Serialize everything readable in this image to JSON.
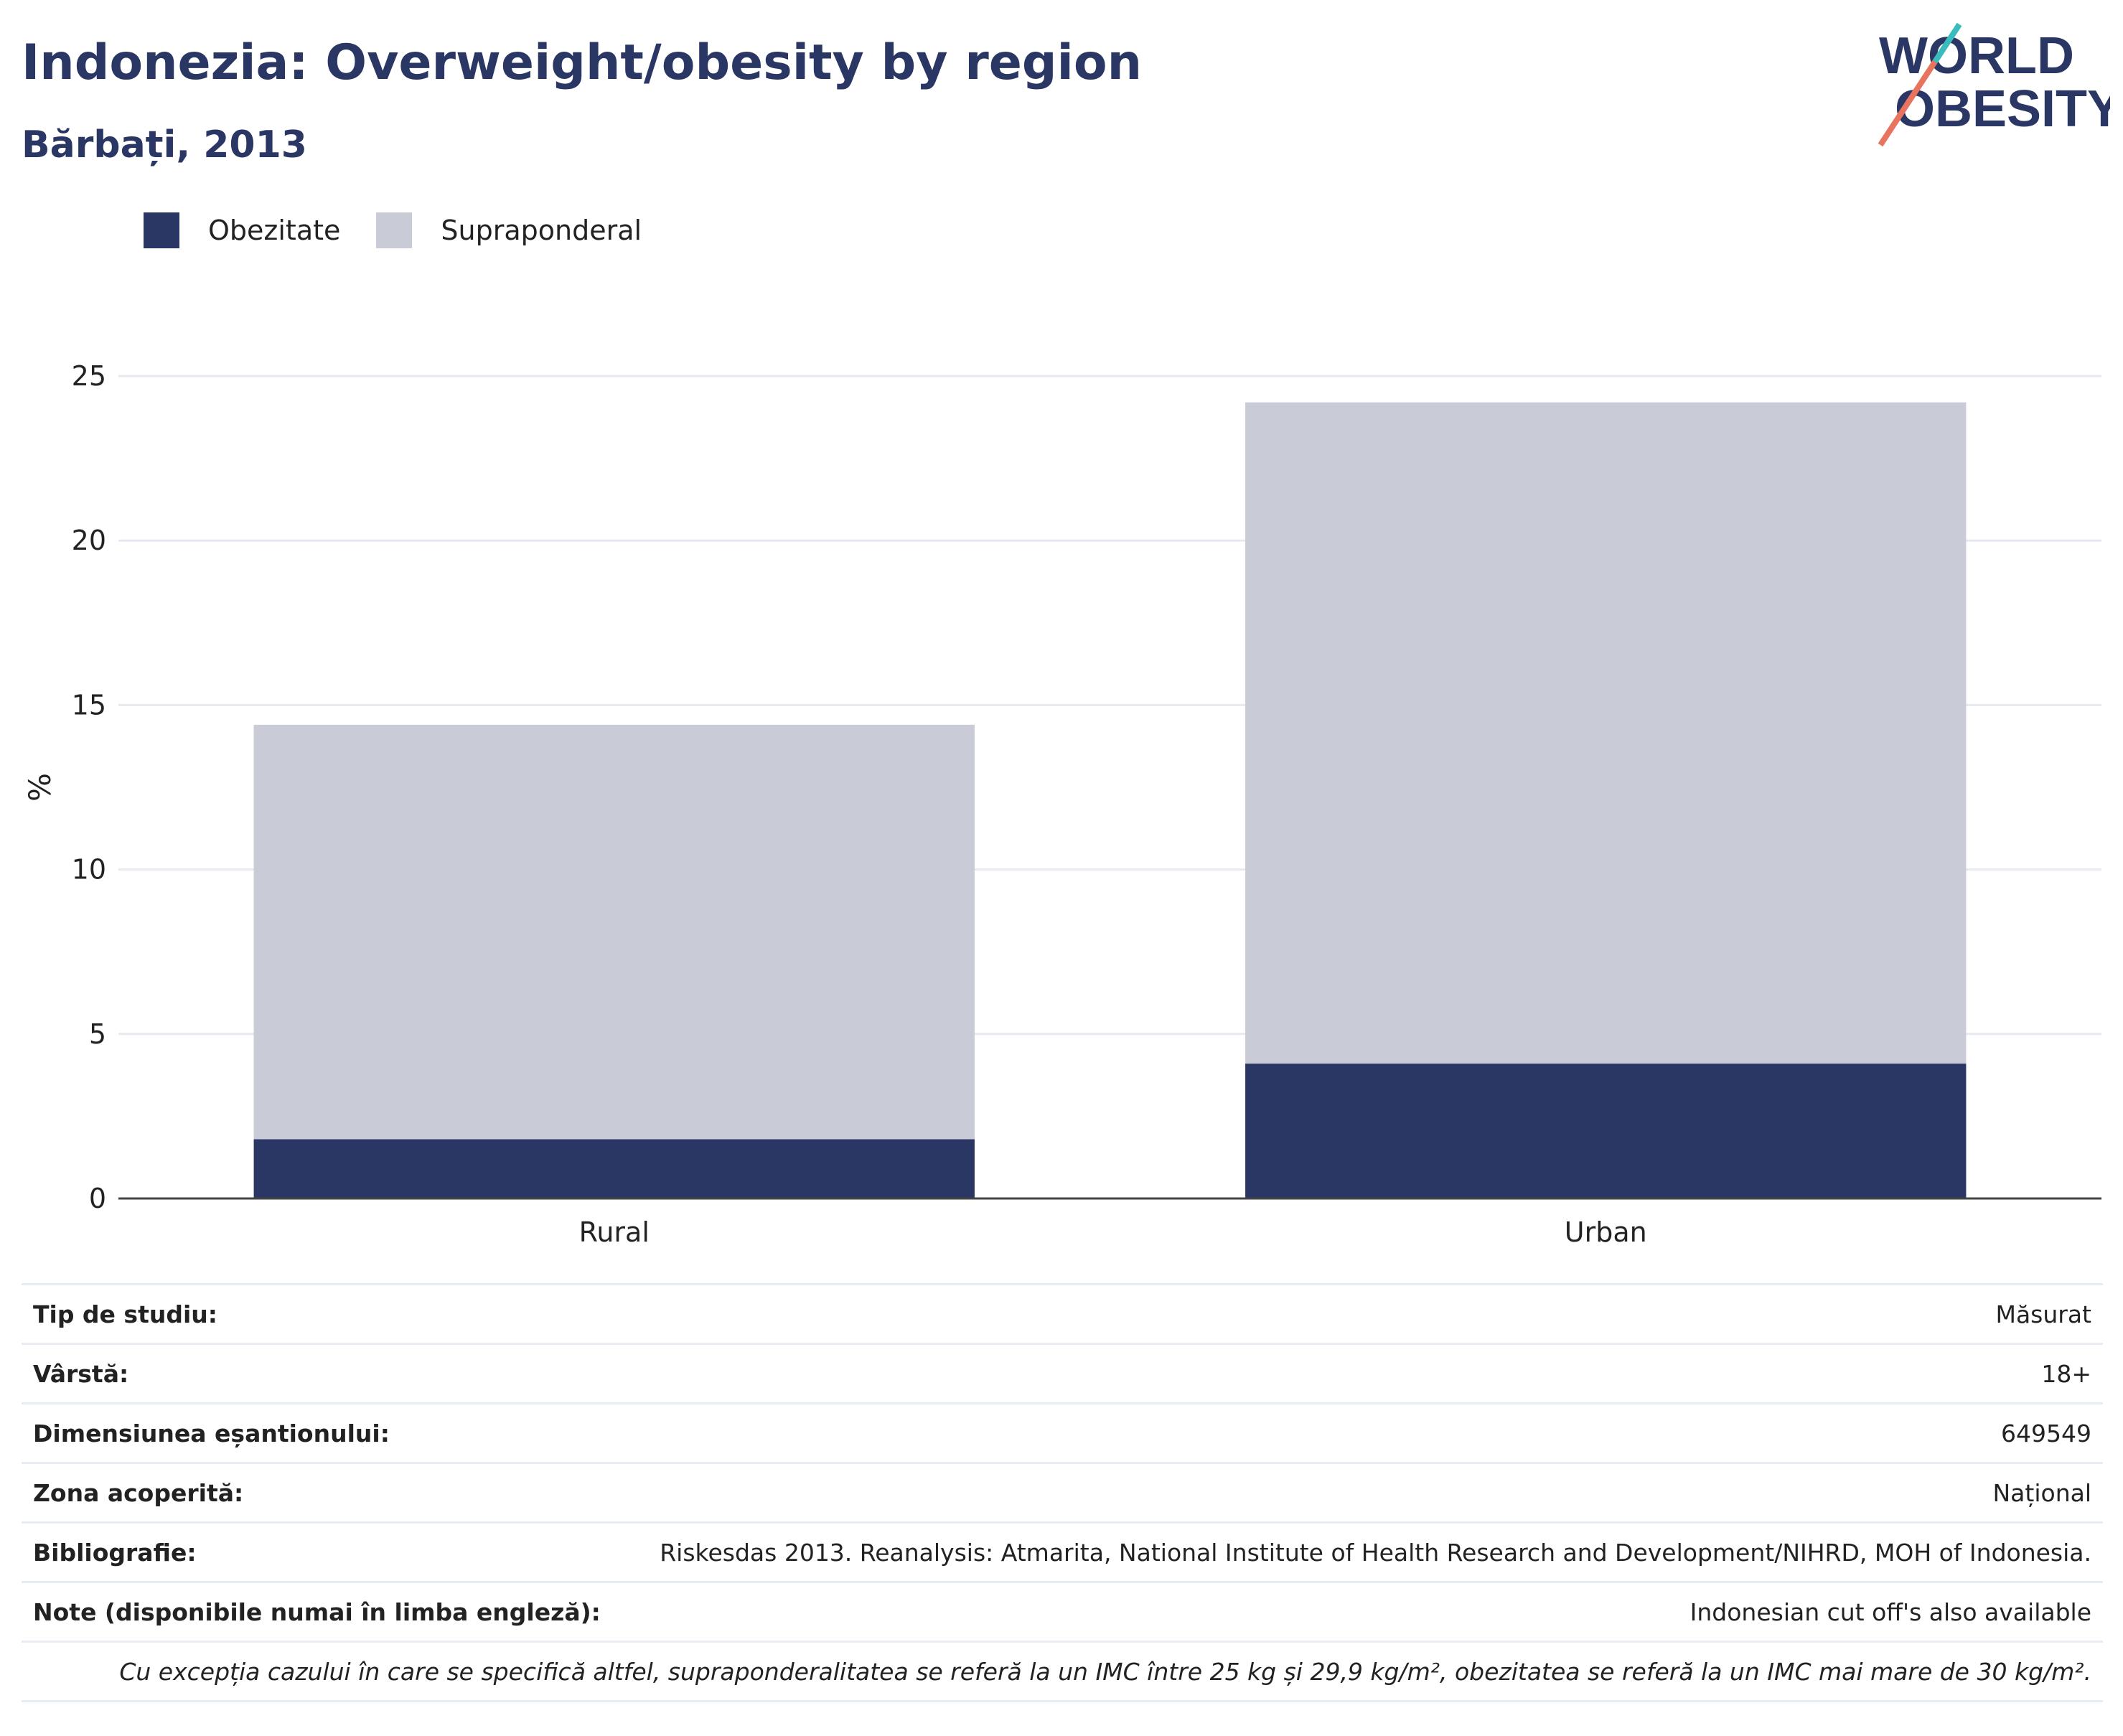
{
  "header": {
    "title": "Indonezia: Overweight/obesity by region",
    "subtitle": "Bărbați, 2013"
  },
  "logo": {
    "line1": "WORLD",
    "line2": "OBESITY",
    "colors": {
      "text": "#2a3663",
      "slash_red": "#e8745f",
      "slash_teal": "#3bbcbc"
    }
  },
  "legend": [
    {
      "label": "Obezitate",
      "color": "#2a3663"
    },
    {
      "label": "Supraponderal",
      "color": "#c9cbd7"
    }
  ],
  "chart_data": {
    "type": "bar",
    "stacked": true,
    "categories": [
      "Rural",
      "Urban"
    ],
    "series": [
      {
        "name": "Obezitate",
        "values": [
          1.8,
          4.1
        ],
        "color": "#2a3663"
      },
      {
        "name": "Supraponderal",
        "values": [
          12.6,
          20.1
        ],
        "color": "#c9cbd7"
      }
    ],
    "ylabel": "%",
    "ylim": [
      0,
      25
    ],
    "yticks": [
      0,
      5,
      10,
      15,
      20,
      25
    ],
    "grid": true,
    "legend_position": "top-left"
  },
  "metadata": [
    {
      "key": "Tip de studiu:",
      "value": "Măsurat"
    },
    {
      "key": "Vârstă:",
      "value": "18+"
    },
    {
      "key": "Dimensiunea eșantionului:",
      "value": "649549"
    },
    {
      "key": "Zona acoperită:",
      "value": "Național"
    },
    {
      "key": "Bibliografie:",
      "value": "Riskesdas 2013. Reanalysis: Atmarita, National Institute of Health Research and Development/NIHRD, MOH of Indonesia."
    },
    {
      "key": "Note (disponibile numai în limba engleză):",
      "value": "Indonesian cut off's also available"
    }
  ],
  "footnote": "Cu excepția cazului în care se specifică altfel, supraponderalitatea se referă la un IMC între 25 kg și 29,9 kg/m², obezitatea se referă la un IMC mai mare de 30 kg/m²."
}
